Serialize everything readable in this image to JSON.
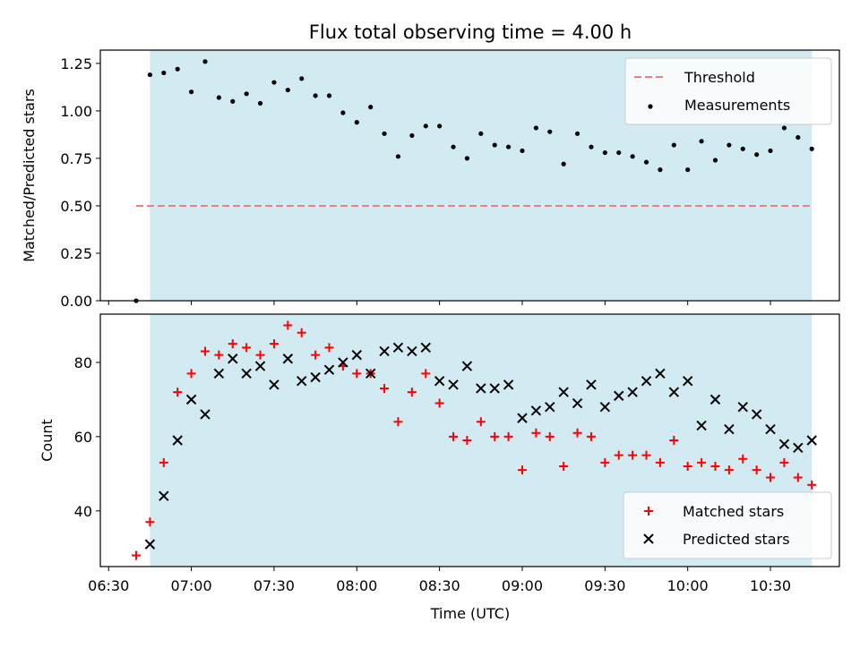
{
  "chart_data": {
    "title": "Flux total observing time = 4.00 h",
    "x_axis": {
      "label": "Time (UTC)",
      "start": "06:30",
      "tick_labels": [
        "06:30",
        "07:00",
        "07:30",
        "08:00",
        "08:30",
        "09:00",
        "09:30",
        "10:00",
        "10:30"
      ],
      "tick_values": [
        "06:30",
        "07:00",
        "07:30",
        "08:00",
        "08:30",
        "09:00",
        "09:30",
        "10:00",
        "10:30"
      ],
      "range": [
        "06:27",
        "10:55"
      ]
    },
    "observing_span": {
      "start": "06:45",
      "end": "10:45",
      "color": "#add8e6"
    },
    "panels": [
      {
        "type": "scatter",
        "ylabel": "Matched/Predicted stars",
        "ylim": [
          0,
          1.32
        ],
        "y_tick_labels": [
          "0.00",
          "0.25",
          "0.50",
          "0.75",
          "1.00",
          "1.25"
        ],
        "y_tick_values": [
          0,
          0.25,
          0.5,
          0.75,
          1.0,
          1.25
        ],
        "legend_position": "top-right",
        "threshold": {
          "name": "Threshold",
          "value": 0.5,
          "x_range": [
            "06:40",
            "10:45"
          ],
          "color": "#f08080",
          "style": "dashed"
        },
        "series": [
          {
            "name": "Measurements",
            "marker": "dot",
            "color": "#000000",
            "x": [
              "06:40",
              "06:45",
              "06:50",
              "06:55",
              "07:00",
              "07:05",
              "07:10",
              "07:15",
              "07:20",
              "07:25",
              "07:30",
              "07:35",
              "07:40",
              "07:45",
              "07:50",
              "07:55",
              "08:00",
              "08:05",
              "08:10",
              "08:15",
              "08:20",
              "08:25",
              "08:30",
              "08:35",
              "08:40",
              "08:45",
              "08:50",
              "08:55",
              "09:00",
              "09:05",
              "09:10",
              "09:15",
              "09:20",
              "09:25",
              "09:30",
              "09:35",
              "09:40",
              "09:45",
              "09:50",
              "09:55",
              "10:00",
              "10:05",
              "10:10",
              "10:15",
              "10:20",
              "10:25",
              "10:30",
              "10:35",
              "10:40",
              "10:45"
            ],
            "y": [
              0.0,
              1.19,
              1.2,
              1.22,
              1.1,
              1.26,
              1.07,
              1.05,
              1.09,
              1.04,
              1.15,
              1.11,
              1.17,
              1.08,
              1.08,
              0.99,
              0.94,
              1.02,
              0.88,
              0.76,
              0.87,
              0.92,
              0.92,
              0.81,
              0.75,
              0.88,
              0.82,
              0.81,
              0.79,
              0.91,
              0.89,
              0.72,
              0.88,
              0.81,
              0.78,
              0.78,
              0.76,
              0.73,
              0.69,
              0.82,
              0.69,
              0.84,
              0.74,
              0.82,
              0.8,
              0.77,
              0.79,
              0.91,
              0.86,
              0.8
            ]
          }
        ]
      },
      {
        "type": "scatter",
        "ylabel": "Count",
        "ylim": [
          25,
          93
        ],
        "y_tick_labels": [
          "40",
          "60",
          "80"
        ],
        "y_tick_values": [
          40,
          60,
          80
        ],
        "legend_position": "bottom-right",
        "series": [
          {
            "name": "Matched stars",
            "marker": "plus",
            "color": "#ff0000",
            "x": [
              "06:40",
              "06:45",
              "06:50",
              "06:55",
              "07:00",
              "07:05",
              "07:10",
              "07:15",
              "07:20",
              "07:25",
              "07:30",
              "07:35",
              "07:40",
              "07:45",
              "07:50",
              "07:55",
              "08:00",
              "08:05",
              "08:10",
              "08:15",
              "08:20",
              "08:25",
              "08:30",
              "08:35",
              "08:40",
              "08:45",
              "08:50",
              "08:55",
              "09:00",
              "09:05",
              "09:10",
              "09:15",
              "09:20",
              "09:25",
              "09:30",
              "09:35",
              "09:40",
              "09:45",
              "09:50",
              "09:55",
              "10:00",
              "10:05",
              "10:10",
              "10:15",
              "10:20",
              "10:25",
              "10:30",
              "10:35",
              "10:40",
              "10:45"
            ],
            "y": [
              28,
              37,
              53,
              72,
              77,
              83,
              82,
              85,
              84,
              82,
              85,
              90,
              88,
              82,
              84,
              79,
              77,
              77,
              73,
              64,
              72,
              77,
              69,
              60,
              59,
              64,
              60,
              60,
              51,
              61,
              60,
              52,
              61,
              60,
              53,
              55,
              55,
              55,
              53,
              59,
              52,
              53,
              52,
              51,
              54,
              51,
              49,
              53,
              49,
              47
            ]
          },
          {
            "name": "Predicted stars",
            "marker": "cross",
            "color": "#000000",
            "x": [
              "06:45",
              "06:50",
              "06:55",
              "07:00",
              "07:05",
              "07:10",
              "07:15",
              "07:20",
              "07:25",
              "07:30",
              "07:35",
              "07:40",
              "07:45",
              "07:50",
              "07:55",
              "08:00",
              "08:05",
              "08:10",
              "08:15",
              "08:20",
              "08:25",
              "08:30",
              "08:35",
              "08:40",
              "08:45",
              "08:50",
              "08:55",
              "09:00",
              "09:05",
              "09:10",
              "09:15",
              "09:20",
              "09:25",
              "09:30",
              "09:35",
              "09:40",
              "09:45",
              "09:50",
              "09:55",
              "10:00",
              "10:05",
              "10:10",
              "10:15",
              "10:20",
              "10:25",
              "10:30",
              "10:35",
              "10:40",
              "10:45"
            ],
            "y": [
              31,
              44,
              59,
              70,
              66,
              77,
              81,
              77,
              79,
              74,
              81,
              75,
              76,
              78,
              80,
              82,
              77,
              83,
              84,
              83,
              84,
              75,
              74,
              79,
              73,
              73,
              74,
              65,
              67,
              68,
              72,
              69,
              74,
              68,
              71,
              72,
              75,
              77,
              72,
              75,
              63,
              70,
              62,
              68,
              66,
              62,
              58,
              57,
              59
            ]
          }
        ]
      }
    ]
  }
}
